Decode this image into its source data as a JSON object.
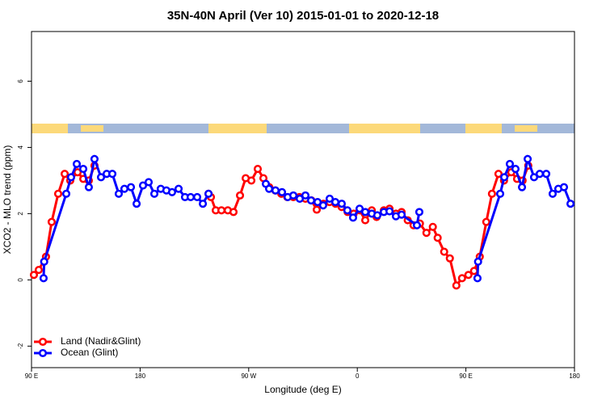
{
  "chart_data": {
    "type": "line",
    "title": "35N-40N April (Ver 10)   2015-01-01 to 2020-12-18",
    "xlabel": "Longitude (deg E)",
    "ylabel": "XCO2 - MLO trend (ppm)",
    "xlim": [
      90,
      540
    ],
    "ylim": [
      -2.65,
      7.5
    ],
    "xticks": [
      {
        "value": 90,
        "label": "90 E"
      },
      180,
      {
        "value": 270,
        "label": "90 W"
      },
      {
        "value": 360,
        "label": "0"
      },
      {
        "value": 450,
        "label": "90 E"
      },
      {
        "value": 540,
        "label": "180"
      }
    ],
    "yticks": [
      -2,
      0,
      2,
      4,
      6
    ],
    "legend": "bottom-left",
    "series": [
      {
        "name": "Land (Nadir&Glint)",
        "color": "#ff0000",
        "x": [
          92,
          96,
          102,
          106.7,
          112.1,
          117.5,
          122.1,
          128.2,
          132.9,
          137.5,
          142.2,
          190,
          236.7,
          238.7,
          242.7,
          247.4,
          252.7,
          257.4,
          262.8,
          267.5,
          272.2,
          277.5,
          282.2,
          287,
          292,
          297,
          302,
          307,
          312,
          317,
          322,
          326.4,
          332,
          337,
          342,
          347,
          352,
          357,
          362,
          366.6,
          372,
          376,
          382,
          386.7,
          392,
          396.7,
          401.8,
          406.6,
          411.9,
          417.3,
          422.6,
          426.6,
          432,
          436.7,
          442.1,
          446.8,
          452.1,
          456.8,
          461.5,
          466.9,
          471.6,
          477,
          481.6,
          487.6,
          492.4,
          497,
          501.7
        ],
        "values": [
          0.15,
          0.3,
          0.7,
          1.75,
          2.6,
          3.2,
          3.0,
          3.25,
          3.05,
          3.0,
          3.45,
          null,
          2.6,
          2.5,
          2.1,
          2.1,
          2.1,
          2.05,
          2.55,
          3.07,
          3.0,
          3.35,
          3.07,
          2.8,
          2.7,
          2.6,
          2.5,
          2.5,
          2.5,
          2.45,
          2.4,
          2.12,
          2.3,
          2.35,
          2.3,
          2.2,
          2.05,
          2.0,
          2.1,
          1.8,
          2.1,
          1.9,
          2.1,
          2.15,
          2.0,
          2.05,
          1.8,
          1.65,
          1.7,
          1.42,
          1.6,
          1.27,
          0.85,
          0.65,
          -0.17,
          0.05,
          0.15,
          0.27,
          0.7,
          1.75,
          2.6,
          3.2,
          3.0,
          3.25,
          3.05,
          3.0,
          3.45
        ]
      },
      {
        "name": "Ocean (Glint)",
        "color": "#0000ff",
        "x": [
          100,
          100.5,
          118.8,
          122.8,
          127.5,
          132.9,
          137.5,
          142.2,
          147.6,
          152.3,
          157,
          162.3,
          167,
          172.4,
          177.1,
          182.4,
          187.1,
          191.8,
          197.1,
          201.8,
          206.5,
          211.9,
          217.2,
          221.9,
          227.3,
          232,
          236.7,
          260,
          284.2,
          286.9,
          292.2,
          297.6,
          302.3,
          307,
          312.3,
          317,
          321.7,
          327.1,
          331.7,
          337.1,
          341.8,
          347.1,
          351.8,
          356.5,
          361.9,
          366.6,
          372,
          376.6,
          382,
          386.7,
          392,
          396.7,
          409.4,
          411.4,
          430,
          459.6,
          460.1,
          478.4,
          481.8,
          486.4,
          491.1,
          496.5,
          501.2,
          506.5,
          511.2,
          516.6,
          521.9,
          526.6,
          531.3,
          536.7
        ],
        "values": [
          0.05,
          0.55,
          2.6,
          3.1,
          3.5,
          3.35,
          2.8,
          3.65,
          3.1,
          3.2,
          3.2,
          2.6,
          2.75,
          2.8,
          2.3,
          2.85,
          2.95,
          2.6,
          2.75,
          2.7,
          2.65,
          2.75,
          2.5,
          2.5,
          2.5,
          2.3,
          2.6,
          null,
          2.9,
          2.75,
          2.7,
          2.65,
          2.5,
          2.55,
          2.45,
          2.55,
          2.4,
          2.35,
          2.25,
          2.45,
          2.35,
          2.3,
          2.1,
          1.88,
          2.15,
          2.05,
          2.0,
          1.95,
          2.05,
          2.07,
          1.92,
          1.97,
          1.65,
          2.05,
          null,
          0.05,
          0.55,
          2.6,
          3.1,
          3.5,
          3.35,
          2.8,
          3.65,
          3.1,
          3.2,
          3.2,
          2.6,
          2.75,
          2.8,
          2.3
        ]
      }
    ]
  }
}
